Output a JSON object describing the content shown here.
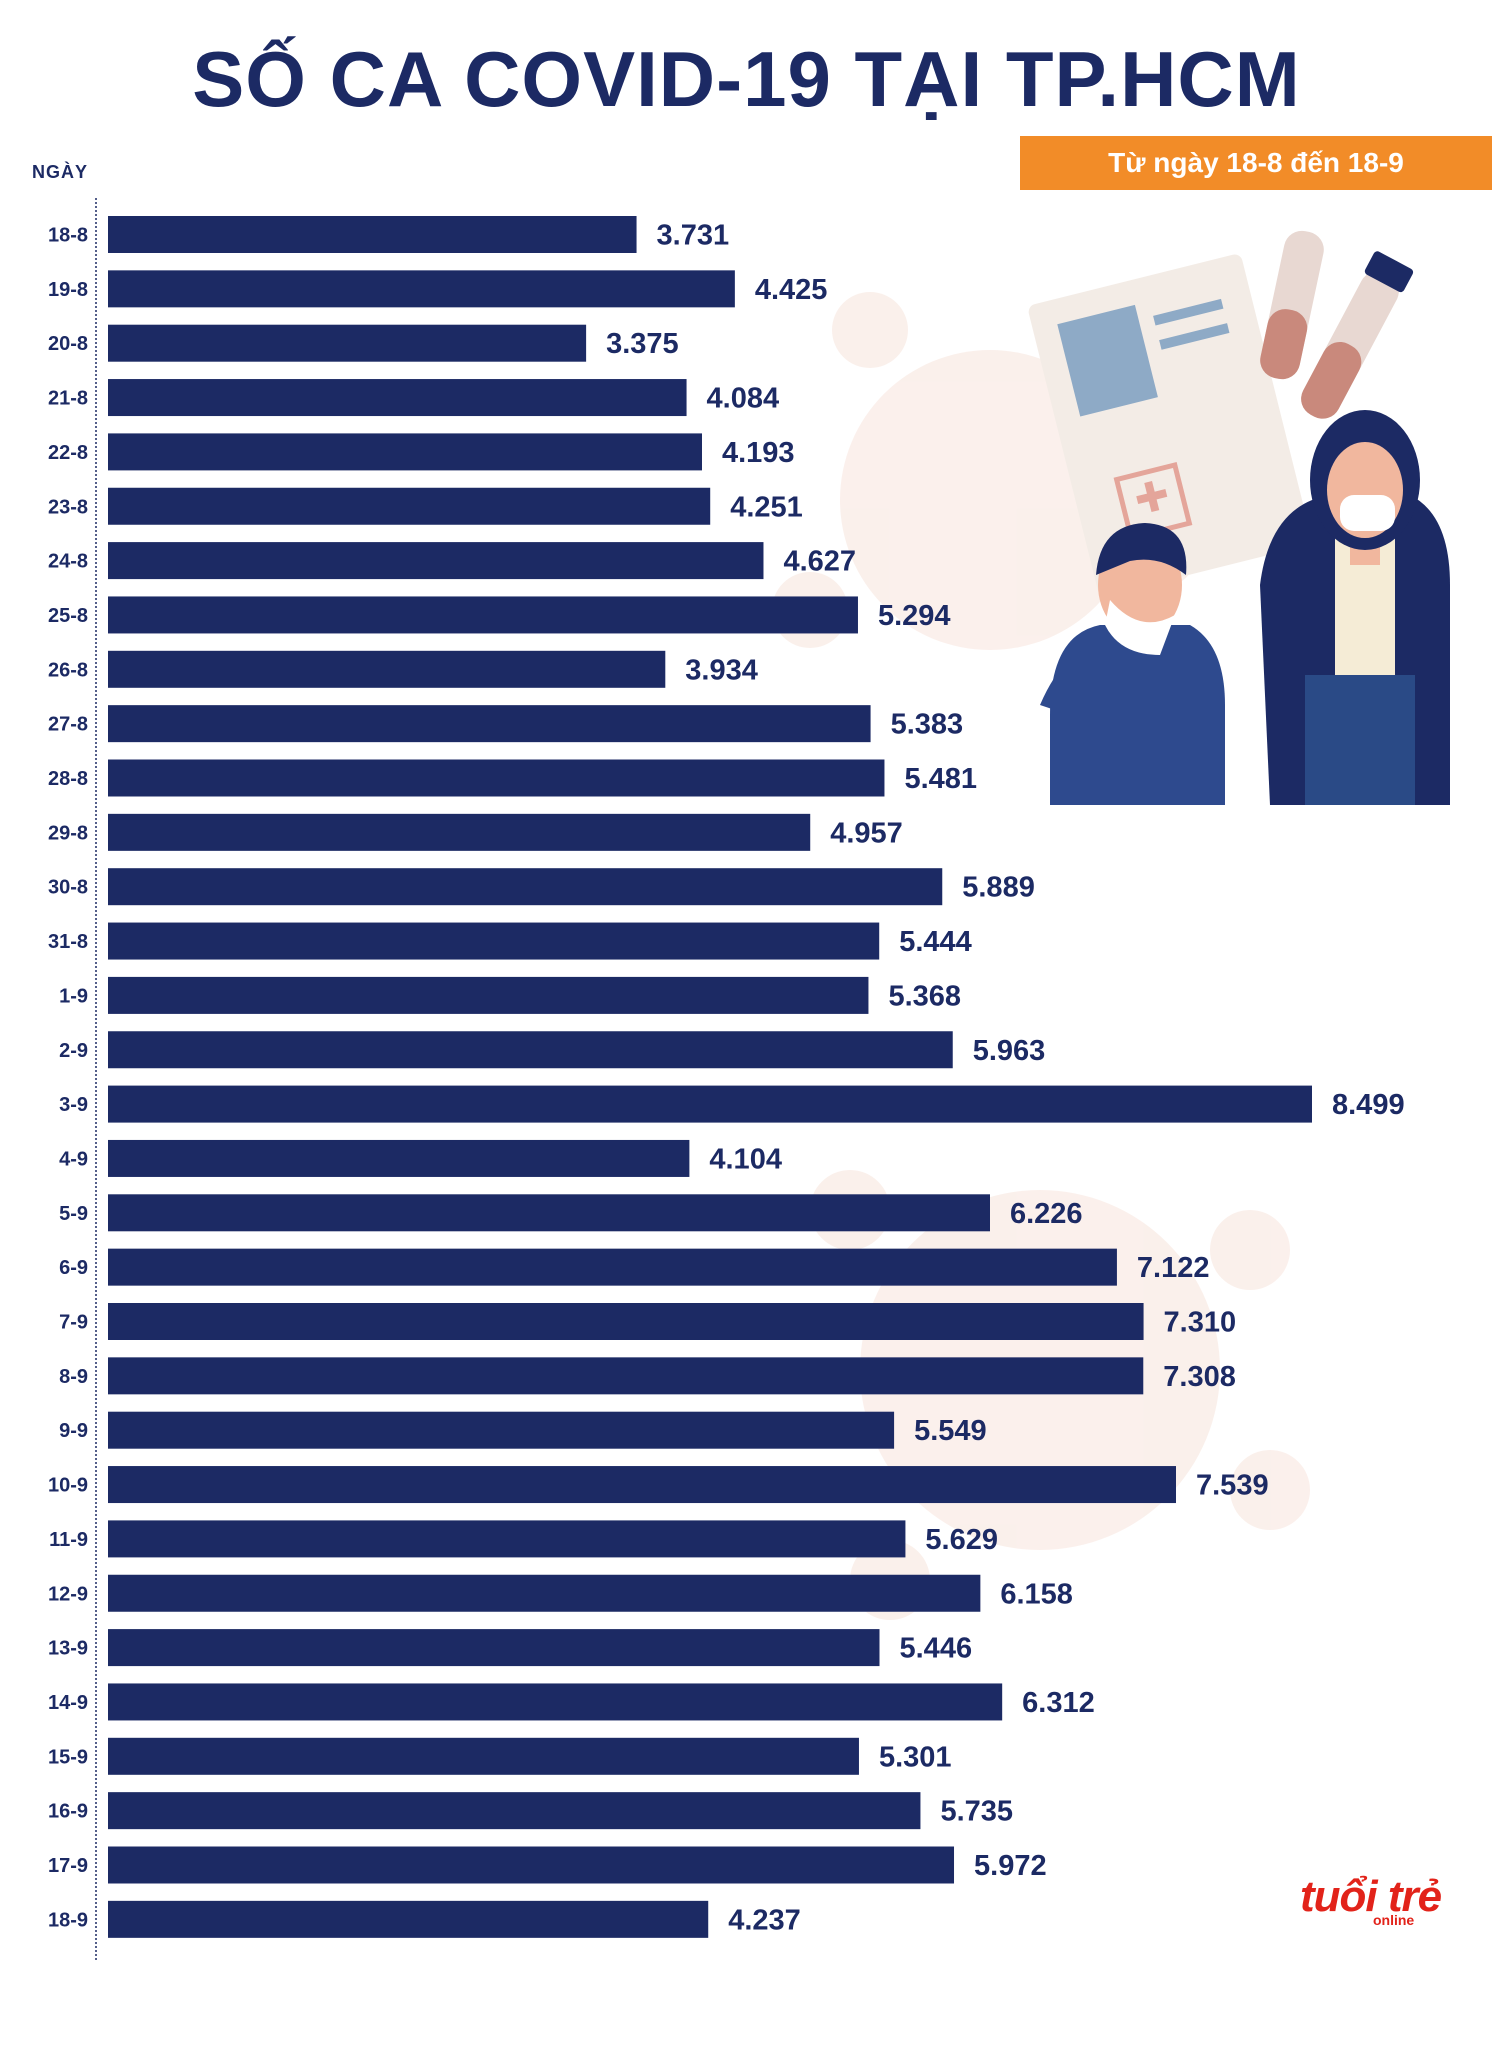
{
  "colors": {
    "bar": "#1c2a64",
    "accent": "#f28c28",
    "logo": "#e2231a"
  },
  "header": {
    "title": "SỐ CA COVID-19 TẠI TP.HCM",
    "date_range": "Từ ngày 18-8 đến 18-9"
  },
  "brand": {
    "logo_text": "tuổi trẻ",
    "logo_sub": "online"
  },
  "chart_data": {
    "type": "bar",
    "orientation": "horizontal",
    "title": "SỐ CA COVID-19 TẠI TP.HCM",
    "subtitle": "Từ ngày 18-8 đến 18-9",
    "ylabel": "NGÀY",
    "xlabel": "",
    "xlim": [
      0,
      8499
    ],
    "grid": false,
    "categories": [
      "18-8",
      "19-8",
      "20-8",
      "21-8",
      "22-8",
      "23-8",
      "24-8",
      "25-8",
      "26-8",
      "27-8",
      "28-8",
      "29-8",
      "30-8",
      "31-8",
      "1-9",
      "2-9",
      "3-9",
      "4-9",
      "5-9",
      "6-9",
      "7-9",
      "8-9",
      "9-9",
      "10-9",
      "11-9",
      "12-9",
      "13-9",
      "14-9",
      "15-9",
      "16-9",
      "17-9",
      "18-9"
    ],
    "values": [
      3731,
      4425,
      3375,
      4084,
      4193,
      4251,
      4627,
      5294,
      3934,
      5383,
      5481,
      4957,
      5889,
      5444,
      5368,
      5963,
      8499,
      4104,
      6226,
      7122,
      7310,
      7308,
      5549,
      7539,
      5629,
      6158,
      5446,
      6312,
      5301,
      5735,
      5972,
      4237
    ],
    "value_labels": [
      "3.731",
      "4.425",
      "3.375",
      "4.084",
      "4.193",
      "4.251",
      "4.627",
      "5.294",
      "3.934",
      "5.383",
      "5.481",
      "4.957",
      "5.889",
      "5.444",
      "5.368",
      "5.963",
      "8.499",
      "4.104",
      "6.226",
      "7.122",
      "7.310",
      "7.308",
      "5.549",
      "7.539",
      "5.629",
      "6.158",
      "5.446",
      "6.312",
      "5.301",
      "5.735",
      "5.972",
      "4.237"
    ]
  }
}
